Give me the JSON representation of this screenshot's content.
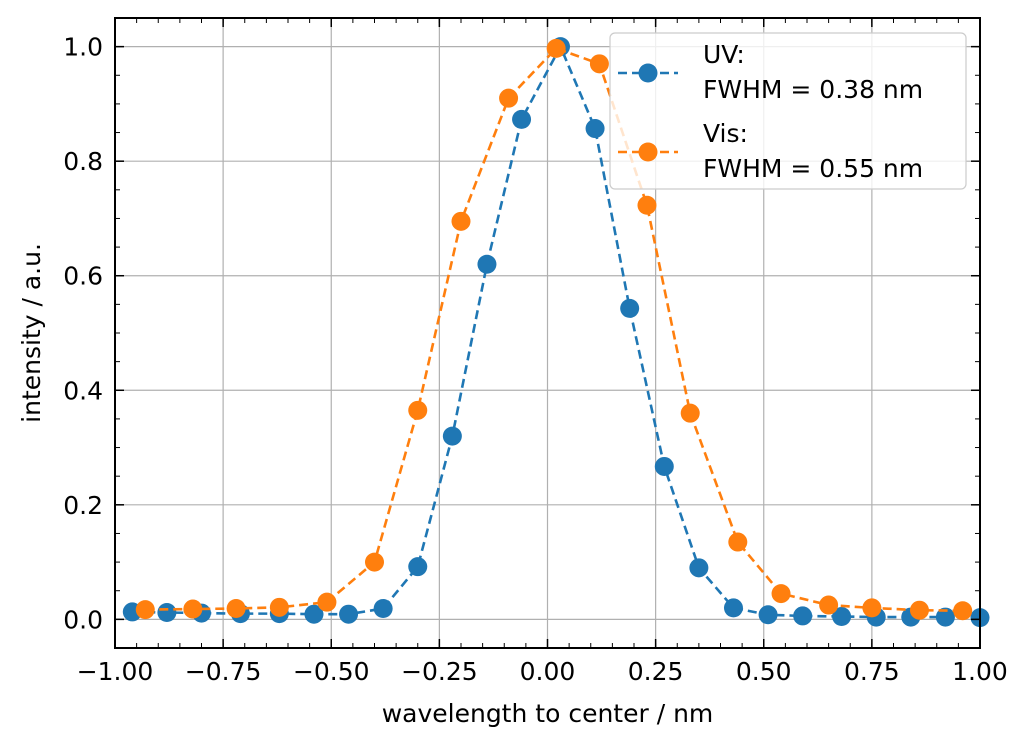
{
  "chart_data": {
    "type": "line",
    "xlabel": "wavelength to center / nm",
    "ylabel": "intensity / a.u.",
    "xlim": [
      -1.0,
      1.0
    ],
    "ylim": [
      -0.05,
      1.05
    ],
    "xticks": [
      "−1.00",
      "−0.75",
      "−0.50",
      "−0.25",
      "0.00",
      "0.25",
      "0.50",
      "0.75",
      "1.00"
    ],
    "yticks": [
      "0.0",
      "0.2",
      "0.4",
      "0.6",
      "0.8",
      "1.0"
    ],
    "grid": true,
    "legend_position": "top-right",
    "series": [
      {
        "name": "UV:",
        "annotation": "FWHM = 0.38 nm",
        "color": "#1f77b4",
        "line_style": "dashed",
        "marker": "circle",
        "x": [
          -0.96,
          -0.88,
          -0.8,
          -0.71,
          -0.62,
          -0.54,
          -0.46,
          -0.38,
          -0.3,
          -0.22,
          -0.14,
          -0.06,
          0.03,
          0.11,
          0.19,
          0.27,
          0.35,
          0.43,
          0.51,
          0.59,
          0.68,
          0.76,
          0.84,
          0.92,
          1.0
        ],
        "y": [
          0.013,
          0.012,
          0.011,
          0.01,
          0.01,
          0.009,
          0.009,
          0.019,
          0.092,
          0.32,
          0.62,
          0.873,
          1.0,
          0.857,
          0.543,
          0.267,
          0.09,
          0.02,
          0.008,
          0.006,
          0.005,
          0.004,
          0.004,
          0.004,
          0.003
        ]
      },
      {
        "name": "Vis:",
        "annotation": "FWHM = 0.55 nm",
        "color": "#ff7f0e",
        "line_style": "dashed",
        "marker": "circle",
        "x": [
          -0.93,
          -0.82,
          -0.72,
          -0.62,
          -0.51,
          -0.4,
          -0.3,
          -0.2,
          -0.09,
          0.02,
          0.12,
          0.23,
          0.33,
          0.44,
          0.54,
          0.65,
          0.75,
          0.86,
          0.96
        ],
        "y": [
          0.017,
          0.018,
          0.019,
          0.021,
          0.03,
          0.1,
          0.365,
          0.695,
          0.91,
          0.997,
          0.97,
          0.723,
          0.36,
          0.135,
          0.045,
          0.025,
          0.02,
          0.016,
          0.015
        ]
      }
    ]
  }
}
